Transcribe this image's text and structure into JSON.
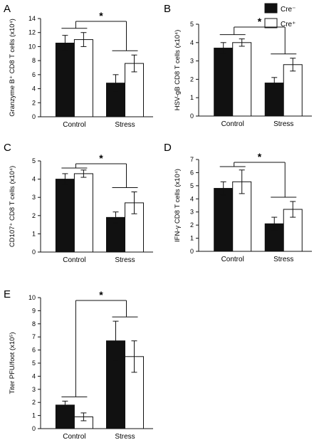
{
  "legend": {
    "items": [
      {
        "label": "Cre⁻",
        "fill": "#111111"
      },
      {
        "label": "Cre⁺",
        "fill": "#ffffff"
      }
    ]
  },
  "chart_data": [
    {
      "type": "bar",
      "panel": "A",
      "ylabel": "Granzyme B⁺ CD8 T cells (x10⁴)",
      "ylim": [
        0,
        14
      ],
      "yticks": [
        0,
        2,
        4,
        6,
        8,
        10,
        12,
        14
      ],
      "categories": [
        "Control",
        "Stress"
      ],
      "series": [
        {
          "name": "Cre⁻",
          "values": [
            10.5,
            4.8
          ],
          "errors": [
            1.1,
            1.2
          ]
        },
        {
          "name": "Cre⁺",
          "values": [
            11.0,
            7.6
          ],
          "errors": [
            1.0,
            1.2
          ]
        }
      ],
      "significance": "*"
    },
    {
      "type": "bar",
      "panel": "B",
      "ylabel": "HSV-gB CD8 T cells (x10⁴)",
      "ylim": [
        0,
        5
      ],
      "yticks": [
        0,
        1,
        2,
        3,
        4,
        5
      ],
      "categories": [
        "Control",
        "Stress"
      ],
      "series": [
        {
          "name": "Cre⁻",
          "values": [
            3.7,
            1.8
          ],
          "errors": [
            0.3,
            0.3
          ]
        },
        {
          "name": "Cre⁺",
          "values": [
            4.0,
            2.8
          ],
          "errors": [
            0.2,
            0.35
          ]
        }
      ],
      "significance": "*"
    },
    {
      "type": "bar",
      "panel": "C",
      "ylabel": "CD107⁺ CD8 T cells (x10⁴)",
      "ylim": [
        0,
        5
      ],
      "yticks": [
        0,
        1,
        2,
        3,
        4,
        5
      ],
      "categories": [
        "Control",
        "Stress"
      ],
      "series": [
        {
          "name": "Cre⁻",
          "values": [
            4.0,
            1.9
          ],
          "errors": [
            0.3,
            0.3
          ]
        },
        {
          "name": "Cre⁺",
          "values": [
            4.3,
            2.7
          ],
          "errors": [
            0.2,
            0.6
          ]
        }
      ],
      "significance": "*"
    },
    {
      "type": "bar",
      "panel": "D",
      "ylabel": "IFN-γ CD8 T cells (x10⁴)",
      "ylim": [
        0,
        7
      ],
      "yticks": [
        0,
        1,
        2,
        3,
        4,
        5,
        6,
        7
      ],
      "categories": [
        "Control",
        "Stress"
      ],
      "series": [
        {
          "name": "Cre⁻",
          "values": [
            4.8,
            2.1
          ],
          "errors": [
            0.5,
            0.5
          ]
        },
        {
          "name": "Cre⁺",
          "values": [
            5.3,
            3.2
          ],
          "errors": [
            0.9,
            0.6
          ]
        }
      ],
      "significance": "*"
    },
    {
      "type": "bar",
      "panel": "E",
      "ylabel": "Titer PFU/foot (x10⁵)",
      "ylim": [
        0,
        10
      ],
      "yticks": [
        0,
        1,
        2,
        3,
        4,
        5,
        6,
        7,
        8,
        9,
        10
      ],
      "categories": [
        "Control",
        "Stress"
      ],
      "series": [
        {
          "name": "Cre⁻",
          "values": [
            1.8,
            6.7
          ],
          "errors": [
            0.3,
            1.5
          ]
        },
        {
          "name": "Cre⁺",
          "values": [
            0.9,
            5.5
          ],
          "errors": [
            0.3,
            1.2
          ]
        }
      ],
      "significance": "*"
    }
  ]
}
